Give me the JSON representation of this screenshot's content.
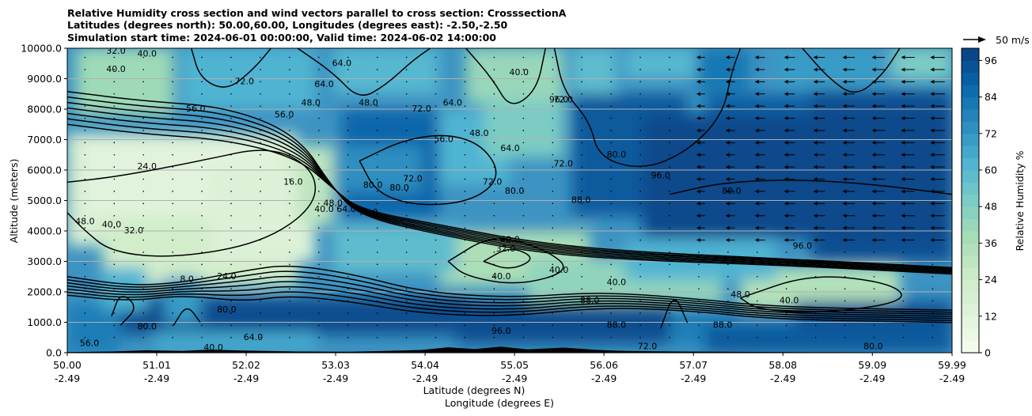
{
  "chart_data": {
    "type": "heatmap",
    "title_lines": [
      "Relative Humidity cross section and wind vectors parallel to cross section: CrosssectionA",
      "Latitudes (degrees north): 50.00,60.00, Longitudes (degrees east): -2.50,-2.50",
      "Simulation start time: 2024-06-01 00:00:00, Valid time: 2024-06-02 14:00:00"
    ],
    "xlabel_lat": "Latitude (degrees N)",
    "xlabel_lon": "Longitude (degrees E)",
    "ylabel": "Altitude (meters)",
    "colorbar_label": "Relative Humidity %",
    "quiver_key": "50 m/s",
    "ylim": [
      0,
      10000
    ],
    "xlim": [
      50.0,
      59.99
    ],
    "x_ticks": [
      {
        "lat": "50.00",
        "lon": "-2.49",
        "value": 50.0
      },
      {
        "lat": "51.01",
        "lon": "-2.49",
        "value": 51.01
      },
      {
        "lat": "52.02",
        "lon": "-2.49",
        "value": 52.02
      },
      {
        "lat": "53.03",
        "lon": "-2.49",
        "value": 53.03
      },
      {
        "lat": "54.04",
        "lon": "-2.49",
        "value": 54.04
      },
      {
        "lat": "55.05",
        "lon": "-2.49",
        "value": 55.05
      },
      {
        "lat": "56.06",
        "lon": "-2.49",
        "value": 56.06
      },
      {
        "lat": "57.07",
        "lon": "-2.49",
        "value": 57.07
      },
      {
        "lat": "58.08",
        "lon": "-2.49",
        "value": 58.08
      },
      {
        "lat": "59.09",
        "lon": "-2.49",
        "value": 59.09
      },
      {
        "lat": "59.99",
        "lon": "-2.49",
        "value": 59.99
      }
    ],
    "y_ticks": [
      {
        "label": "0.0",
        "value": 0
      },
      {
        "label": "1000.0",
        "value": 1000
      },
      {
        "label": "2000.0",
        "value": 2000
      },
      {
        "label": "3000.0",
        "value": 3000
      },
      {
        "label": "4000.0",
        "value": 4000
      },
      {
        "label": "5000.0",
        "value": 5000
      },
      {
        "label": "6000.0",
        "value": 6000
      },
      {
        "label": "7000.0",
        "value": 7000
      },
      {
        "label": "8000.0",
        "value": 8000
      },
      {
        "label": "9000.0",
        "value": 9000
      },
      {
        "label": "10000.0",
        "value": 10000
      }
    ],
    "colorbar_ticks": [
      {
        "label": "0",
        "value": 0
      },
      {
        "label": "12",
        "value": 12
      },
      {
        "label": "24",
        "value": 24
      },
      {
        "label": "36",
        "value": 36
      },
      {
        "label": "48",
        "value": 48
      },
      {
        "label": "60",
        "value": 60
      },
      {
        "label": "72",
        "value": 72
      },
      {
        "label": "84",
        "value": 84
      },
      {
        "label": "96",
        "value": 96
      }
    ],
    "colorbar_range": [
      0,
      100
    ],
    "colormap": [
      "#f7fcf0",
      "#e0f3db",
      "#ccebc5",
      "#a8ddb5",
      "#7bccc4",
      "#4eb3d3",
      "#2b8cbe",
      "#0868ac",
      "#084081"
    ],
    "grid": true,
    "contour_labels": [
      {
        "text": "24.0",
        "x": 50.9,
        "y": 6100
      },
      {
        "text": "16.0",
        "x": 52.55,
        "y": 5600
      },
      {
        "text": "8.0",
        "x": 51.35,
        "y": 2400
      },
      {
        "text": "24.0",
        "x": 51.8,
        "y": 2500
      },
      {
        "text": "32.0",
        "x": 50.75,
        "y": 4000
      },
      {
        "text": "40.0",
        "x": 50.5,
        "y": 4200
      },
      {
        "text": "48.0",
        "x": 50.2,
        "y": 4300
      },
      {
        "text": "40.0",
        "x": 52.9,
        "y": 4700
      },
      {
        "text": "48.0",
        "x": 53.0,
        "y": 4900
      },
      {
        "text": "64.0",
        "x": 53.15,
        "y": 4700
      },
      {
        "text": "72.0",
        "x": 53.4,
        "y": 4600
      },
      {
        "text": "80.0",
        "x": 53.45,
        "y": 5500
      },
      {
        "text": "80.0",
        "x": 53.75,
        "y": 5400
      },
      {
        "text": "72.0",
        "x": 53.9,
        "y": 5700
      },
      {
        "text": "56.0",
        "x": 51.45,
        "y": 8000
      },
      {
        "text": "56.0",
        "x": 52.45,
        "y": 7800
      },
      {
        "text": "48.0",
        "x": 52.75,
        "y": 8200
      },
      {
        "text": "64.0",
        "x": 52.9,
        "y": 8800
      },
      {
        "text": "72.0",
        "x": 52.0,
        "y": 8900
      },
      {
        "text": "64.0",
        "x": 53.1,
        "y": 9500
      },
      {
        "text": "48.0",
        "x": 53.4,
        "y": 8200
      },
      {
        "text": "72.0",
        "x": 54.0,
        "y": 8000
      },
      {
        "text": "64.0",
        "x": 54.35,
        "y": 8200
      },
      {
        "text": "56.0",
        "x": 54.25,
        "y": 7000
      },
      {
        "text": "48.0",
        "x": 54.65,
        "y": 7200
      },
      {
        "text": "64.0",
        "x": 55.0,
        "y": 6700
      },
      {
        "text": "72.0",
        "x": 54.8,
        "y": 5600
      },
      {
        "text": "80.0",
        "x": 55.05,
        "y": 5300
      },
      {
        "text": "72.0",
        "x": 55.6,
        "y": 6200
      },
      {
        "text": "80.0",
        "x": 56.2,
        "y": 6500
      },
      {
        "text": "88.0",
        "x": 55.8,
        "y": 5000
      },
      {
        "text": "80.0",
        "x": 57.5,
        "y": 5300
      },
      {
        "text": "96.0",
        "x": 56.7,
        "y": 5800
      },
      {
        "text": "40.0",
        "x": 55.0,
        "y": 3700
      },
      {
        "text": "32.0",
        "x": 54.95,
        "y": 3400
      },
      {
        "text": "40.0",
        "x": 54.9,
        "y": 2500
      },
      {
        "text": "40.0",
        "x": 55.55,
        "y": 2700
      },
      {
        "text": "40.0",
        "x": 56.2,
        "y": 2300
      },
      {
        "text": "40.0",
        "x": 58.15,
        "y": 1700
      },
      {
        "text": "48.0",
        "x": 57.6,
        "y": 1900
      },
      {
        "text": "88.0",
        "x": 56.2,
        "y": 900
      },
      {
        "text": "96.0",
        "x": 54.9,
        "y": 700
      },
      {
        "text": "88.0",
        "x": 55.9,
        "y": 1700
      },
      {
        "text": "96.0",
        "x": 58.3,
        "y": 3500
      },
      {
        "text": "64.0",
        "x": 52.1,
        "y": 500
      },
      {
        "text": "80.0",
        "x": 51.8,
        "y": 1400
      },
      {
        "text": "80.0",
        "x": 50.9,
        "y": 850
      },
      {
        "text": "56.0",
        "x": 50.25,
        "y": 300
      },
      {
        "text": "40.0",
        "x": 51.65,
        "y": 150
      },
      {
        "text": "88.0",
        "x": 57.4,
        "y": 900
      },
      {
        "text": "80.0",
        "x": 59.1,
        "y": 200
      },
      {
        "text": "72.0",
        "x": 56.55,
        "y": 200
      },
      {
        "text": "40.0",
        "x": 50.55,
        "y": 9300
      },
      {
        "text": "40.0",
        "x": 50.9,
        "y": 9800
      },
      {
        "text": "32.0",
        "x": 50.55,
        "y": 9900
      },
      {
        "text": "72.0",
        "x": 55.6,
        "y": 8300
      },
      {
        "text": "40.0",
        "x": 55.1,
        "y": 9200
      },
      {
        "text": "96.0",
        "x": 55.55,
        "y": 8300
      }
    ]
  }
}
